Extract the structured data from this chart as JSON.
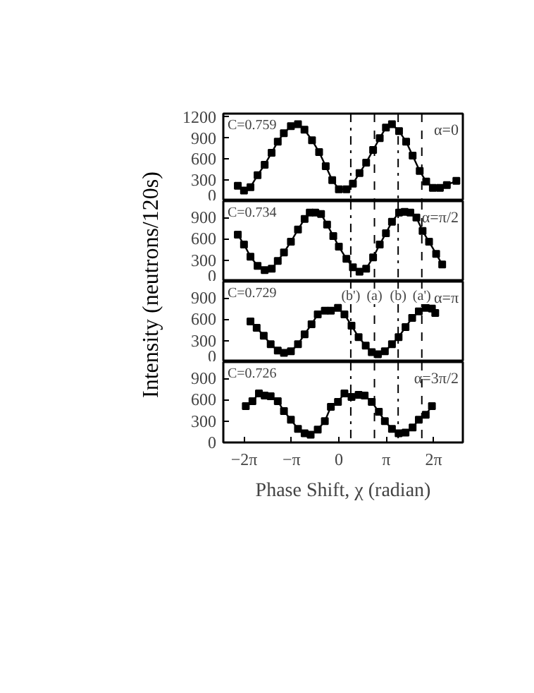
{
  "chart_data": [
    {
      "type": "line",
      "ylabel": "Intensity (neutrons/120s)",
      "annotations": [
        "C=0.759",
        "α=0"
      ],
      "marker": "square",
      "tick_labels": "y",
      "xlim": [
        -7.66,
        8.22
      ],
      "ylim": [
        0,
        1250
      ],
      "yticks": [
        0,
        300,
        600,
        900,
        1200
      ],
      "ref_lines": [
        {
          "axis": "x",
          "value": 0.79,
          "line_style": "dashdot"
        },
        {
          "axis": "x",
          "value": 2.36,
          "line_style": "dashed"
        },
        {
          "axis": "x",
          "value": 3.93,
          "line_style": "dashdot"
        },
        {
          "axis": "x",
          "value": 5.5,
          "line_style": "dashed"
        }
      ],
      "series": [
        {
          "color": "#000000",
          "x": [
            -6.7,
            -6.29,
            -5.86,
            -5.39,
            -4.92,
            -4.46,
            -4.05,
            -3.65,
            -3.18,
            -2.71,
            -2.28,
            -1.78,
            -1.31,
            -0.87,
            -0.44,
            0.0,
            0.5,
            0.93,
            1.37,
            1.81,
            2.27,
            2.71,
            3.12,
            3.52,
            3.99,
            4.46,
            4.89,
            5.36,
            5.79,
            6.23,
            6.7,
            7.16,
            7.79
          ],
          "values": [
            220,
            150,
            200,
            370,
            520,
            690,
            850,
            970,
            1070,
            1100,
            1020,
            870,
            700,
            500,
            300,
            170,
            170,
            250,
            400,
            550,
            730,
            900,
            1050,
            1100,
            1000,
            850,
            650,
            430,
            280,
            190,
            190,
            230,
            290
          ]
        }
      ]
    },
    {
      "type": "line",
      "annotations": [
        "C=0.734",
        "α=π/2"
      ],
      "marker": "square",
      "tick_labels": "y",
      "xlim": [
        -7.66,
        8.22
      ],
      "ylim": [
        0,
        1130
      ],
      "yticks": [
        0,
        300,
        600,
        900
      ],
      "ref_lines": [
        {
          "axis": "x",
          "value": 0.79,
          "line_style": "dashdot"
        },
        {
          "axis": "x",
          "value": 2.36,
          "line_style": "dashed"
        },
        {
          "axis": "x",
          "value": 3.93,
          "line_style": "dashdot"
        },
        {
          "axis": "x",
          "value": 5.5,
          "line_style": "dashed"
        }
      ],
      "series": [
        {
          "color": "#000000",
          "x": [
            -6.7,
            -6.29,
            -5.86,
            -5.39,
            -4.92,
            -4.45,
            -4.05,
            -3.64,
            -3.18,
            -2.71,
            -2.27,
            -1.93,
            -1.56,
            -1.18,
            -0.78,
            -0.37,
            0.0,
            0.5,
            0.93,
            1.37,
            1.81,
            2.27,
            2.71,
            3.12,
            3.52,
            3.99,
            4.36,
            4.74,
            5.14,
            5.55,
            5.98,
            6.45,
            6.85
          ],
          "values": [
            660,
            520,
            350,
            220,
            160,
            180,
            290,
            410,
            560,
            730,
            880,
            970,
            970,
            950,
            800,
            640,
            490,
            320,
            200,
            140,
            180,
            340,
            520,
            680,
            840,
            970,
            980,
            970,
            900,
            710,
            560,
            390,
            240
          ]
        }
      ]
    },
    {
      "type": "line",
      "annotations": [
        "C=0.729",
        "α=π"
      ],
      "marker": "square",
      "tick_labels": "y",
      "xlim": [
        -7.66,
        8.22
      ],
      "ylim": [
        0,
        1130
      ],
      "yticks": [
        0,
        300,
        600,
        900
      ],
      "ref_lines": [
        {
          "axis": "x",
          "value": 0.79,
          "line_style": "dashdot",
          "label": "(b')"
        },
        {
          "axis": "x",
          "value": 2.36,
          "line_style": "dashed",
          "label": "(a)"
        },
        {
          "axis": "x",
          "value": 3.93,
          "line_style": "dashdot",
          "label": "(b)"
        },
        {
          "axis": "x",
          "value": 5.5,
          "line_style": "dashed",
          "label": "(a')"
        }
      ],
      "series": [
        {
          "color": "#000000",
          "x": [
            -5.86,
            -5.45,
            -4.98,
            -4.52,
            -4.05,
            -3.64,
            -3.18,
            -2.71,
            -2.27,
            -1.81,
            -1.4,
            -0.93,
            -0.53,
            -0.06,
            0.37,
            0.84,
            1.31,
            1.78,
            2.18,
            2.59,
            3.05,
            3.52,
            3.96,
            4.42,
            4.86,
            5.3,
            5.76,
            6.17,
            6.39
          ],
          "values": [
            570,
            480,
            370,
            250,
            160,
            130,
            150,
            250,
            390,
            530,
            670,
            720,
            720,
            760,
            670,
            510,
            350,
            230,
            140,
            110,
            150,
            250,
            350,
            490,
            620,
            710,
            760,
            750,
            690
          ]
        }
      ]
    },
    {
      "type": "line",
      "xlabel": "Phase Shift, χ (radian)",
      "annotations": [
        "C=0.726",
        "α=3π/2"
      ],
      "marker": "square",
      "xlim": [
        -7.66,
        8.22
      ],
      "ylim": [
        0,
        1130
      ],
      "yticks": [
        0,
        300,
        600,
        900
      ],
      "xticks": [
        {
          "value": -6.2832,
          "label": "−2π"
        },
        {
          "value": -3.1416,
          "label": "−π"
        },
        0,
        {
          "value": 3.1416,
          "label": "π"
        },
        {
          "value": 6.2832,
          "label": "2π"
        }
      ],
      "ref_lines": [
        {
          "axis": "x",
          "value": 0.79,
          "line_style": "dashdot"
        },
        {
          "axis": "x",
          "value": 2.36,
          "line_style": "dashed"
        },
        {
          "axis": "x",
          "value": 3.93,
          "line_style": "dashdot"
        },
        {
          "axis": "x",
          "value": 5.5,
          "line_style": "dashed"
        }
      ],
      "series": [
        {
          "color": "#000000",
          "x": [
            -6.17,
            -5.73,
            -5.3,
            -4.92,
            -4.52,
            -4.05,
            -3.64,
            -3.18,
            -2.71,
            -2.27,
            -1.87,
            -1.4,
            -0.93,
            -0.53,
            -0.06,
            0.37,
            0.84,
            1.31,
            1.71,
            2.18,
            2.65,
            3.05,
            3.52,
            3.96,
            4.42,
            4.89,
            5.3,
            5.76,
            6.17
          ],
          "values": [
            510,
            580,
            690,
            660,
            650,
            580,
            440,
            320,
            190,
            130,
            110,
            180,
            300,
            500,
            570,
            690,
            640,
            670,
            660,
            570,
            430,
            300,
            190,
            130,
            140,
            210,
            320,
            390,
            510
          ]
        }
      ]
    }
  ]
}
